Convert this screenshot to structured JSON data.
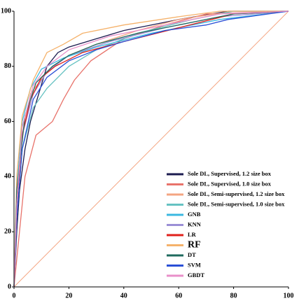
{
  "chart_data": {
    "type": "line",
    "xlim": [
      0,
      100
    ],
    "ylim": [
      0,
      100
    ],
    "xticks": [
      0,
      20,
      40,
      60,
      80,
      100
    ],
    "yticks": [
      0,
      20,
      40,
      60,
      80,
      100
    ],
    "legend": "lower right",
    "series": [
      {
        "name": "Sole DL, Supervised, 1.2 size box",
        "color": "#1b1b4f",
        "x": [
          0,
          1,
          2,
          4,
          6,
          9,
          12,
          16,
          20,
          30,
          40,
          60,
          78,
          100
        ],
        "values": [
          0,
          20,
          35,
          50,
          60,
          70,
          80,
          85,
          87,
          90,
          93,
          97,
          100,
          100
        ]
      },
      {
        "name": "Sole DL, Supervised, 1.0 size box",
        "color": "#e8736b",
        "x": [
          0,
          2,
          4,
          8,
          14,
          18,
          22,
          28,
          40,
          55,
          70,
          100
        ],
        "values": [
          0,
          20,
          40,
          55,
          60,
          68,
          75,
          82,
          90,
          95,
          99,
          100
        ]
      },
      {
        "name": "Sole DL, Semi-supervised, 1.2 size box",
        "color": "#f4a582",
        "x": [
          0,
          1,
          3,
          6,
          12,
          20,
          30,
          45,
          60,
          80,
          100
        ],
        "values": [
          0,
          30,
          55,
          70,
          78,
          84,
          88,
          93,
          97,
          100,
          100
        ]
      },
      {
        "name": "Sole DL, Semi-supervised, 1.0 size box",
        "color": "#66c2c2",
        "x": [
          0,
          1,
          3,
          7,
          12,
          20,
          30,
          45,
          65,
          80,
          100
        ],
        "values": [
          0,
          25,
          50,
          65,
          72,
          80,
          86,
          92,
          97,
          100,
          100
        ]
      },
      {
        "name": "GNB",
        "color": "#3bb8e0",
        "x": [
          0,
          1,
          3,
          6,
          10,
          18,
          30,
          50,
          75,
          100
        ],
        "values": [
          0,
          35,
          60,
          72,
          79,
          83,
          87,
          92,
          97,
          100
        ]
      },
      {
        "name": "KNN",
        "color": "#9b8fd6",
        "x": [
          0,
          1,
          3,
          7,
          12,
          20,
          35,
          55,
          75,
          100
        ],
        "values": [
          0,
          30,
          55,
          70,
          78,
          84,
          89,
          94,
          98,
          100
        ]
      },
      {
        "name": "LR",
        "color": "#e0201b",
        "x": [
          0,
          1,
          3,
          6,
          10,
          15,
          25,
          40,
          60,
          80,
          100
        ],
        "values": [
          0,
          30,
          55,
          68,
          76,
          80,
          85,
          89,
          94,
          99,
          100
        ]
      },
      {
        "name": "RF",
        "color": "#f5b26b",
        "x": [
          0,
          1,
          3,
          7,
          12,
          18,
          25,
          40,
          60,
          75,
          100
        ],
        "values": [
          0,
          40,
          62,
          75,
          85,
          88,
          92,
          95,
          98,
          100,
          100
        ]
      },
      {
        "name": "DT",
        "color": "#1f6b5e",
        "x": [
          0,
          1,
          4,
          8,
          14,
          20,
          30,
          45,
          65,
          80,
          100
        ],
        "values": [
          0,
          35,
          62,
          74,
          80,
          84,
          88,
          92,
          96,
          99,
          100
        ]
      },
      {
        "name": "SVM",
        "color": "#2a4fd6",
        "x": [
          0,
          1,
          3,
          7,
          12,
          20,
          30,
          40,
          55,
          70,
          78,
          100
        ],
        "values": [
          0,
          25,
          50,
          68,
          76,
          82,
          86,
          89,
          93,
          95,
          97,
          100
        ]
      },
      {
        "name": "GBDT",
        "color": "#e88fc9",
        "x": [
          0,
          1,
          3,
          7,
          12,
          20,
          35,
          55,
          75,
          100
        ],
        "values": [
          0,
          30,
          58,
          73,
          80,
          86,
          91,
          95,
          99,
          100
        ]
      }
    ]
  }
}
